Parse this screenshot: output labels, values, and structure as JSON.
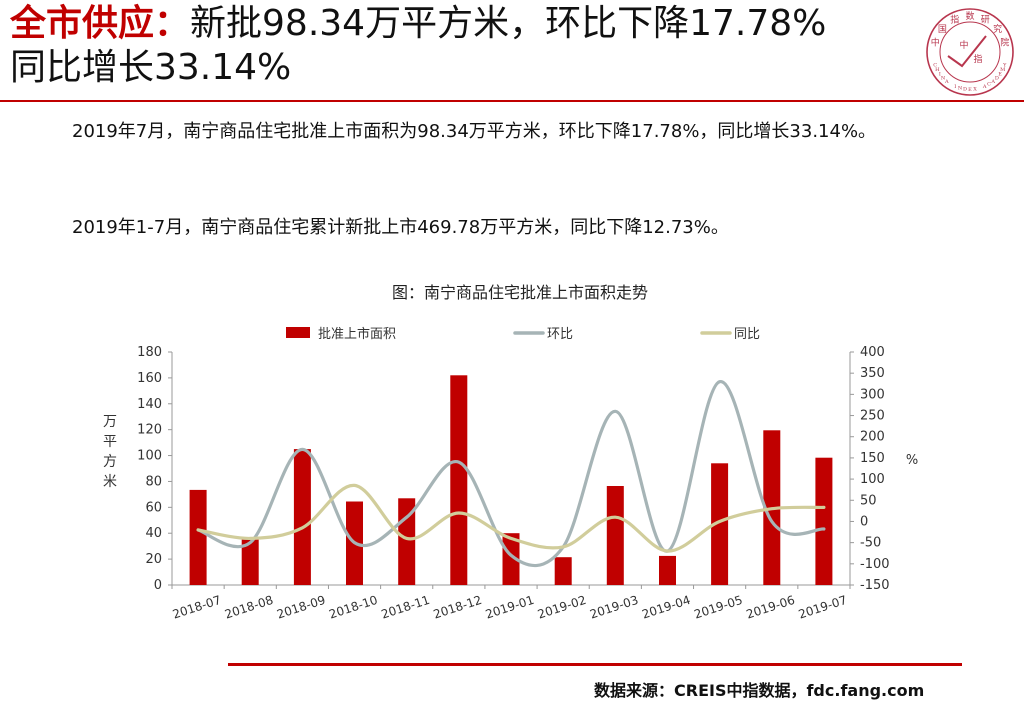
{
  "headline": {
    "label": "全市供应：",
    "line1_rest": "新批98.34万平方米，环比下降17.78%",
    "line2": "同比增长33.14%"
  },
  "logo": {
    "ring_text": "中国指数研究院",
    "center_chars": [
      "中",
      "指"
    ],
    "english": "CHINA INDEX ACADEMY"
  },
  "paragraphs": {
    "p1": "2019年7月，南宁商品住宅批准上市面积为98.34万平方米，环比下降17.78%，同比增长33.14%。",
    "p2": "2019年1-7月，南宁商品住宅累计新批上市469.78万平方米，同比下降12.73%。"
  },
  "source": "数据来源：CREIS中指数据，fdc.fang.com",
  "colors": {
    "accent_red": "#c00000",
    "bar": "#c00000",
    "mom_line": "#a6b4b6",
    "yoy_line": "#d1cd9b"
  },
  "chart_data": {
    "type": "bar",
    "title": "图：南宁商品住宅批准上市面积走势",
    "categories": [
      "2018-07",
      "2018-08",
      "2018-09",
      "2018-10",
      "2018-11",
      "2018-12",
      "2019-01",
      "2019-02",
      "2019-03",
      "2019-04",
      "2019-05",
      "2019-06",
      "2019-07"
    ],
    "ylabel": "万平方米",
    "ylabel_right": "%",
    "ylim": [
      0,
      180
    ],
    "yticks": [
      0,
      20,
      40,
      60,
      80,
      100,
      120,
      140,
      160,
      180
    ],
    "ylim_right": [
      -150,
      400
    ],
    "yticks_right": [
      -150,
      -100,
      -50,
      0,
      50,
      100,
      150,
      200,
      250,
      300,
      350,
      400
    ],
    "legend_position": "top",
    "grid": false,
    "series": [
      {
        "name": "批准上市面积",
        "kind": "bar",
        "axis": "left",
        "values": [
          73.5,
          36,
          105,
          64.5,
          67,
          162,
          40,
          21.5,
          76.5,
          22.5,
          94,
          119.5,
          98.34
        ]
      },
      {
        "name": "环比",
        "kind": "line",
        "axis": "right",
        "values": [
          -20,
          -50,
          170,
          -50,
          10,
          140,
          -80,
          -60,
          260,
          -70,
          330,
          0,
          -17.78
        ]
      },
      {
        "name": "同比",
        "kind": "line",
        "axis": "right",
        "values": [
          -20,
          -40,
          -15,
          85,
          -40,
          20,
          -40,
          -60,
          10,
          -70,
          0,
          30,
          33.14
        ]
      }
    ]
  }
}
